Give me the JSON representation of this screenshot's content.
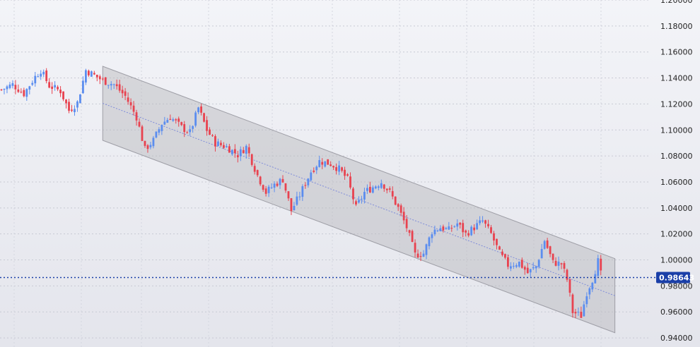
{
  "chart_data": {
    "type": "candlestick",
    "title": "",
    "xlabel": "",
    "ylabel": "",
    "ylim": [
      0.933,
      1.2
    ],
    "grid": true,
    "y_ticks": [
      "1.20000",
      "1.18000",
      "1.16000",
      "1.14000",
      "1.12000",
      "1.10000",
      "1.08000",
      "1.06000",
      "1.04000",
      "1.02000",
      "1.00000",
      "0.98000",
      "0.96000",
      "0.94000"
    ],
    "y_tick_values": [
      1.2,
      1.18,
      1.16,
      1.14,
      1.12,
      1.1,
      1.08,
      1.06,
      1.04,
      1.02,
      1.0,
      0.98,
      0.96,
      0.94
    ],
    "current_price": 0.98643,
    "current_price_label": "0.98643",
    "colors": {
      "up": "#5b8def",
      "down": "#e8424f",
      "channel_fill": "#b5b5bb",
      "channel_edge": "#9e9ea6",
      "midline": "#7f8cd9",
      "price_line": "#1a3fa8",
      "price_tag_bg": "#1a3fa8",
      "background_top": "#f3f4f8",
      "background_bottom": "#e4e5ec"
    },
    "channel": {
      "start_index": 36,
      "end_index": 218,
      "upper_start": 1.149,
      "upper_end": 1.001,
      "lower_start": 1.092,
      "lower_end": 0.944,
      "mid_start": 1.1205,
      "mid_end": 0.9725
    },
    "close_path": [
      [
        0,
        1.131
      ],
      [
        4,
        1.135
      ],
      [
        8,
        1.128
      ],
      [
        12,
        1.141
      ],
      [
        14,
        1.146
      ],
      [
        17,
        1.134
      ],
      [
        21,
        1.13
      ],
      [
        24,
        1.115
      ],
      [
        27,
        1.121
      ],
      [
        30,
        1.146
      ],
      [
        33,
        1.142
      ],
      [
        36,
        1.138
      ],
      [
        40,
        1.135
      ],
      [
        44,
        1.126
      ],
      [
        48,
        1.11
      ],
      [
        51,
        1.085
      ],
      [
        54,
        1.092
      ],
      [
        57,
        1.105
      ],
      [
        60,
        1.11
      ],
      [
        64,
        1.102
      ],
      [
        67,
        1.098
      ],
      [
        70,
        1.117
      ],
      [
        73,
        1.1
      ],
      [
        76,
        1.09
      ],
      [
        80,
        1.087
      ],
      [
        84,
        1.081
      ],
      [
        87,
        1.087
      ],
      [
        91,
        1.065
      ],
      [
        94,
        1.052
      ],
      [
        97,
        1.058
      ],
      [
        100,
        1.062
      ],
      [
        103,
        1.038
      ],
      [
        106,
        1.05
      ],
      [
        110,
        1.068
      ],
      [
        113,
        1.076
      ],
      [
        117,
        1.074
      ],
      [
        120,
        1.07
      ],
      [
        123,
        1.062
      ],
      [
        126,
        1.04
      ],
      [
        129,
        1.052
      ],
      [
        132,
        1.056
      ],
      [
        135,
        1.06
      ],
      [
        138,
        1.052
      ],
      [
        141,
        1.04
      ],
      [
        144,
        1.025
      ],
      [
        147,
        1.004
      ],
      [
        150,
        1.005
      ],
      [
        153,
        1.022
      ],
      [
        156,
        1.025
      ],
      [
        159,
        1.023
      ],
      [
        162,
        1.028
      ],
      [
        165,
        1.02
      ],
      [
        168,
        1.025
      ],
      [
        171,
        1.03
      ],
      [
        174,
        1.02
      ],
      [
        177,
        1.005
      ],
      [
        180,
        0.996
      ],
      [
        184,
        0.998
      ],
      [
        187,
        0.99
      ],
      [
        190,
        0.995
      ],
      [
        193,
        1.015
      ],
      [
        196,
        0.998
      ],
      [
        199,
        0.997
      ],
      [
        201,
        0.985
      ],
      [
        203,
        0.96
      ],
      [
        206,
        0.957
      ],
      [
        208,
        0.975
      ],
      [
        210,
        0.985
      ],
      [
        212,
        0.999
      ],
      [
        213,
        0.989
      ]
    ]
  }
}
